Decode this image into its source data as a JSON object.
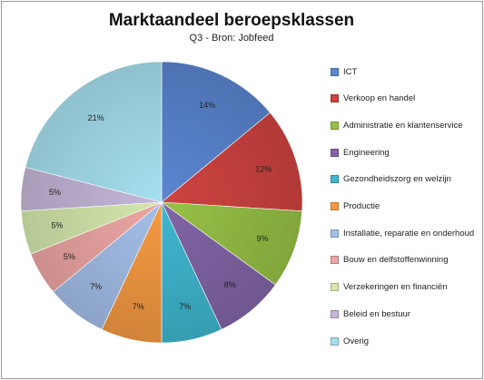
{
  "chart_data": {
    "type": "pie",
    "title": "Marktaandeel beroepsklassen",
    "subtitle": "Q3 - Bron: Jobfeed",
    "slices": [
      {
        "label": "ICT",
        "value": 14,
        "display": "14%",
        "color": "#5b86d1"
      },
      {
        "label": "Verkoop en handel",
        "value": 12,
        "display": "12%",
        "color": "#cf4340"
      },
      {
        "label": "Administratie en klantenservice",
        "value": 9,
        "display": "9%",
        "color": "#97c146"
      },
      {
        "label": "Engineering",
        "value": 8,
        "display": "8%",
        "color": "#8165a6"
      },
      {
        "label": "Gezondheidszorg en welzijn",
        "value": 7,
        "display": "7%",
        "color": "#3fb7cf"
      },
      {
        "label": "Productie",
        "value": 7,
        "display": "7%",
        "color": "#f49a42"
      },
      {
        "label": "Installatie, reparatie en onderhoud",
        "value": 7,
        "display": "7%",
        "color": "#a4bfe8"
      },
      {
        "label": "Bouw en delfstoffenwinning",
        "value": 5,
        "display": "5%",
        "color": "#eda6a4"
      },
      {
        "label": "Verzekeringen en financiën",
        "value": 5,
        "display": "5%",
        "color": "#d4e8ac"
      },
      {
        "label": "Beleid en bestuur",
        "value": 5,
        "display": "5%",
        "color": "#c4b6d8"
      },
      {
        "label": "Overig",
        "value": 21,
        "display": "21%",
        "color": "#a6e0ef"
      }
    ],
    "start_direction": "top",
    "direction": "clockwise",
    "legend_position": "right"
  }
}
